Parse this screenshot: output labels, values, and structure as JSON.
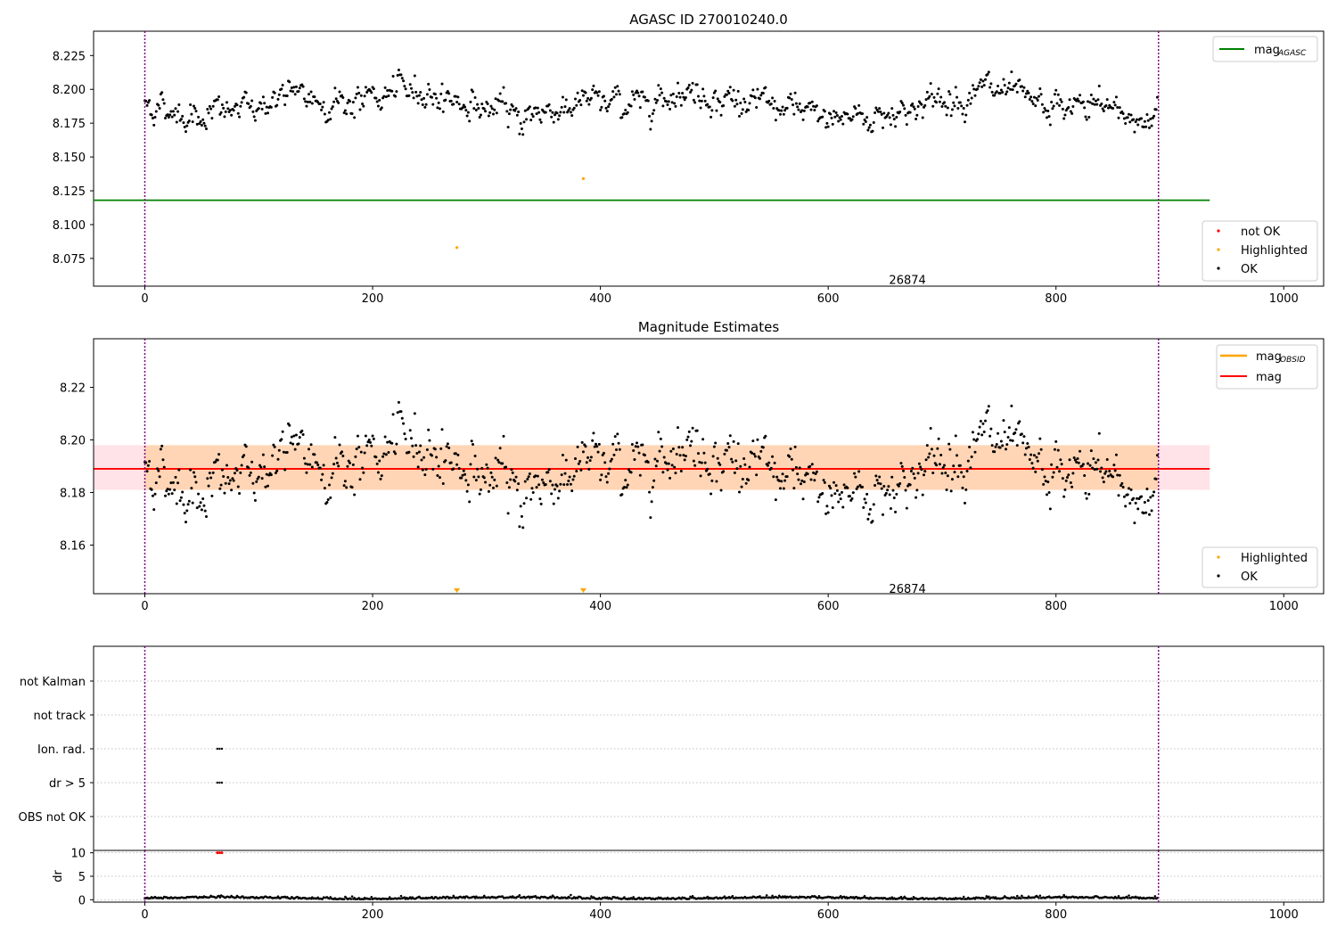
{
  "chart_data": [
    {
      "type": "scatter",
      "title": "AGASC ID 270010240.0",
      "xlim": [
        -45,
        1035
      ],
      "ylim": [
        8.0545,
        8.243
      ],
      "xticks": [
        0,
        200,
        400,
        600,
        800,
        1000
      ],
      "yticks": [
        8.075,
        8.1,
        8.125,
        8.15,
        8.175,
        8.2,
        8.225
      ],
      "ytick_labels": [
        "8.075",
        "8.100",
        "8.125",
        "8.150",
        "8.175",
        "8.200",
        "8.225"
      ],
      "obsid_boundaries": [
        0,
        890
      ],
      "obsid_label": {
        "text": "26874",
        "x": 445,
        "y": 8.0575
      },
      "mag_agasc": {
        "value": 8.118,
        "x_range": [
          -45,
          935
        ],
        "color": "#008000"
      },
      "ok_points": {
        "color": "#000000",
        "n": 890,
        "x_range": [
          0,
          890
        ],
        "y_center": 8.19,
        "trend_knots": [
          [
            0,
            8.19
          ],
          [
            40,
            8.181
          ],
          [
            90,
            8.185
          ],
          [
            120,
            8.195
          ],
          [
            180,
            8.19
          ],
          [
            240,
            8.2
          ],
          [
            290,
            8.188
          ],
          [
            330,
            8.18
          ],
          [
            380,
            8.19
          ],
          [
            430,
            8.19
          ],
          [
            470,
            8.2
          ],
          [
            530,
            8.19
          ],
          [
            590,
            8.18
          ],
          [
            640,
            8.18
          ],
          [
            700,
            8.192
          ],
          [
            740,
            8.2
          ],
          [
            790,
            8.185
          ],
          [
            840,
            8.188
          ],
          [
            880,
            8.176
          ],
          [
            890,
            8.185
          ]
        ],
        "scatter": 0.008
      },
      "highlighted_points": [
        {
          "x": 274,
          "y": 8.083
        },
        {
          "x": 385,
          "y": 8.134
        }
      ],
      "not_ok_points": [],
      "legend_upper": [
        {
          "label": "mag",
          "subscript": "AGASC",
          "color": "#008000"
        }
      ],
      "legend_lower": [
        {
          "label": "not OK",
          "color": "#ff0000"
        },
        {
          "label": "Highlighted",
          "color": "#ffa500"
        },
        {
          "label": "OK",
          "color": "#000000"
        }
      ]
    },
    {
      "type": "scatter",
      "title": "Magnitude Estimates",
      "xlim": [
        -45,
        1035
      ],
      "ylim": [
        8.1415,
        8.2385
      ],
      "xticks": [
        0,
        200,
        400,
        600,
        800,
        1000
      ],
      "yticks": [
        8.16,
        8.18,
        8.2,
        8.22
      ],
      "ytick_labels": [
        "8.16",
        "8.18",
        "8.20",
        "8.22"
      ],
      "obsid_boundaries": [
        0,
        890
      ],
      "obsid_label": {
        "text": "26874",
        "x": 445,
        "y": 8.1425
      },
      "mag": {
        "value": 8.189,
        "x_range": [
          -45,
          935
        ],
        "color": "#ff0000"
      },
      "mag_band": {
        "low": 8.181,
        "high": 8.198,
        "x_range": [
          -45,
          935
        ],
        "color": "#ffc0cb"
      },
      "mag_obsid": {
        "value": 8.189,
        "low": 8.181,
        "high": 8.198,
        "x_range": [
          0,
          890
        ],
        "color": "#ffa500"
      },
      "highlighted_markers": [
        {
          "x": 274
        },
        {
          "x": 385
        }
      ],
      "legend_upper": [
        {
          "label": "mag",
          "subscript": "OBSID",
          "color": "#ffa500"
        },
        {
          "label": "mag",
          "subscript": "",
          "color": "#ff0000"
        }
      ],
      "legend_lower": [
        {
          "label": "Highlighted",
          "color": "#ffa500"
        },
        {
          "label": "OK",
          "color": "#000000"
        }
      ]
    },
    {
      "type": "scatter",
      "title": "",
      "xlim": [
        -45,
        1035
      ],
      "categories": [
        "OBS not OK",
        "dr > 5",
        "Ion. rad.",
        "not track",
        "not Kalman"
      ],
      "flag_points": [
        {
          "category": "Ion. rad.",
          "x": [
            66,
            68,
            70
          ]
        },
        {
          "category": "dr > 5",
          "x": [
            66,
            68,
            70
          ]
        }
      ],
      "obsid_boundaries": [
        0,
        890
      ]
    },
    {
      "type": "scatter",
      "title": "",
      "ylabel": "dr",
      "xlim": [
        -45,
        1035
      ],
      "ylim": [
        -0.5,
        10.5
      ],
      "xticks": [
        0,
        200,
        400,
        600,
        800,
        1000
      ],
      "yticks": [
        0,
        5,
        10
      ],
      "dr_series": {
        "n": 890,
        "x_range": [
          0,
          890
        ],
        "base": 0.25,
        "scatter": 0.25,
        "color": "#000000"
      },
      "dr_outliers": [
        {
          "x": 66,
          "y": 10
        },
        {
          "x": 68,
          "y": 10
        },
        {
          "x": 70,
          "y": 10
        }
      ],
      "obsid_boundaries": [
        0,
        890
      ]
    }
  ]
}
